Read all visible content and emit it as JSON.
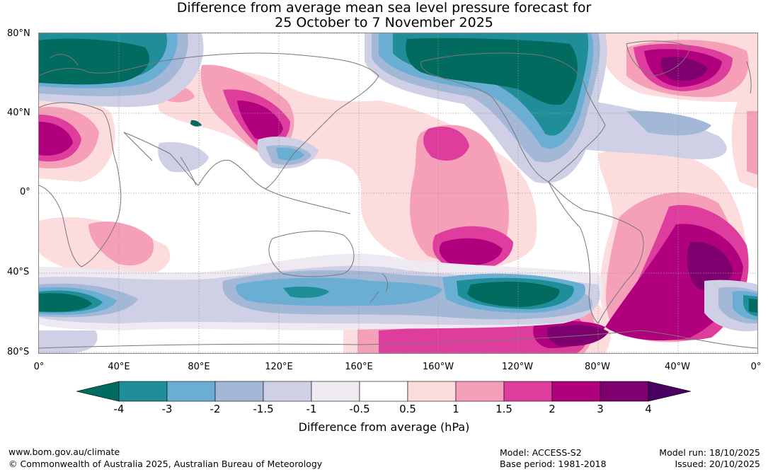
{
  "title": {
    "line1": "Difference from average mean sea level pressure forecast for",
    "line2": "25 October to 7 November 2025"
  },
  "map": {
    "lat_labels": [
      "80°N",
      "40°N",
      "0°",
      "40°S",
      "80°S"
    ],
    "lon_labels": [
      "0°",
      "40°E",
      "80°E",
      "120°E",
      "160°E",
      "160°W",
      "120°W",
      "80°W",
      "40°W",
      "0°"
    ]
  },
  "legend": {
    "ticks": [
      "-4",
      "-3",
      "-2",
      "-1.5",
      "-1",
      "-0.5",
      "0.5",
      "1",
      "1.5",
      "2",
      "3",
      "4"
    ],
    "colors": [
      "#006b5e",
      "#1f8e99",
      "#6aaed4",
      "#a3b7d6",
      "#cfd0e6",
      "#efeaf2",
      "#ffffff",
      "#fcdcdc",
      "#f5a0b8",
      "#de3d9e",
      "#b0007d",
      "#7e006e",
      "#4a0060"
    ],
    "label": "Difference from average (hPa)"
  },
  "footer": {
    "url": "www.bom.gov.au/climate",
    "copyright": "© Commonwealth of Australia 2025, Australian Bureau of Meteorology",
    "model": "Model: ACCESS-S2",
    "base_period": "Base period: 1981-2018",
    "model_run": "Model run: 18/10/2025",
    "issued": "Issued: 20/10/2025"
  }
}
